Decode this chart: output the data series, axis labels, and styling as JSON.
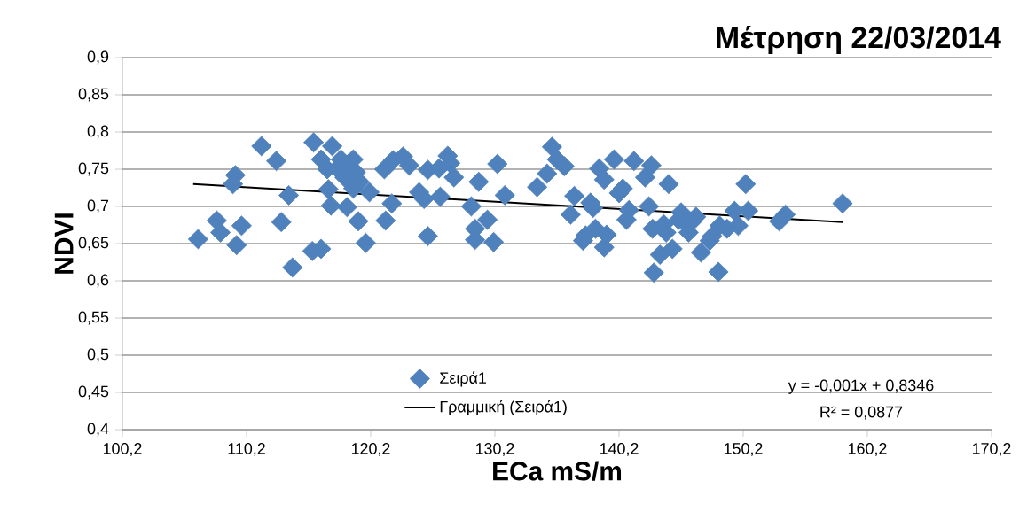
{
  "chart_data": {
    "type": "scatter",
    "title": "Μέτρηση 22/03/2014",
    "xlabel": "ECa mS/m",
    "ylabel": "NDVI",
    "xlim": [
      100.2,
      170.2
    ],
    "xticks": [
      {
        "value": 100.2,
        "label": "100,2"
      },
      {
        "value": 110.2,
        "label": "110,2"
      },
      {
        "value": 120.2,
        "label": "120,2"
      },
      {
        "value": 130.2,
        "label": "130,2"
      },
      {
        "value": 140.2,
        "label": "140,2"
      },
      {
        "value": 150.2,
        "label": "150,2"
      },
      {
        "value": 160.2,
        "label": "160,2"
      },
      {
        "value": 170.2,
        "label": "170,2"
      }
    ],
    "ylim": [
      0.4,
      0.9
    ],
    "yticks": [
      {
        "value": 0.4,
        "label": "0,4"
      },
      {
        "value": 0.45,
        "label": "0,45"
      },
      {
        "value": 0.5,
        "label": "0,5"
      },
      {
        "value": 0.55,
        "label": "0,55"
      },
      {
        "value": 0.6,
        "label": "0,6"
      },
      {
        "value": 0.65,
        "label": "0,65"
      },
      {
        "value": 0.7,
        "label": "0,7"
      },
      {
        "value": 0.75,
        "label": "0,75"
      },
      {
        "value": 0.8,
        "label": "0,8"
      },
      {
        "value": 0.85,
        "label": "0,85"
      },
      {
        "value": 0.9,
        "label": "0,9"
      }
    ],
    "grid": "y",
    "legend": "bottom",
    "annotations": [
      "y = -0,001x + 0,8346",
      "R² = 0,0877"
    ],
    "series": [
      {
        "name": "Σειρά1",
        "marker": "diamond",
        "color": "#4f81bd",
        "x": [
          106.3,
          107.8,
          108.1,
          109.3,
          109.1,
          109.4,
          109.8,
          111.4,
          112.6,
          113.0,
          113.6,
          113.9,
          115.5,
          115.6,
          116.2,
          116.2,
          116.7,
          116.8,
          117.0,
          117.1,
          117.5,
          117.8,
          118.1,
          118.3,
          118.4,
          118.8,
          118.8,
          119.0,
          119.2,
          119.3,
          119.8,
          120.1,
          121.3,
          121.4,
          121.9,
          122.0,
          122.8,
          123.3,
          124.1,
          124.5,
          124.8,
          124.8,
          125.7,
          125.8,
          126.4,
          126.6,
          126.9,
          128.3,
          128.6,
          128.6,
          128.9,
          129.6,
          130.1,
          130.4,
          131.0,
          133.6,
          134.4,
          134.8,
          135.2,
          135.8,
          136.3,
          136.6,
          137.3,
          137.5,
          137.9,
          138.1,
          138.3,
          138.6,
          139.0,
          139.0,
          139.2,
          139.8,
          140.2,
          140.5,
          140.8,
          141.0,
          141.4,
          142.3,
          142.6,
          142.8,
          142.9,
          143.0,
          143.5,
          143.8,
          144.0,
          144.2,
          144.5,
          145.0,
          145.2,
          145.6,
          145.8,
          146.1,
          146.4,
          146.8,
          147.5,
          147.7,
          148.2,
          148.3,
          148.9,
          149.5,
          149.8,
          150.4,
          150.6,
          153.1,
          153.6,
          158.2
        ],
        "values": [
          0.656,
          0.681,
          0.665,
          0.742,
          0.73,
          0.648,
          0.674,
          0.781,
          0.761,
          0.679,
          0.715,
          0.618,
          0.64,
          0.786,
          0.763,
          0.643,
          0.75,
          0.723,
          0.701,
          0.781,
          0.751,
          0.763,
          0.739,
          0.699,
          0.757,
          0.763,
          0.724,
          0.746,
          0.68,
          0.733,
          0.651,
          0.719,
          0.75,
          0.681,
          0.704,
          0.762,
          0.767,
          0.755,
          0.719,
          0.71,
          0.66,
          0.749,
          0.751,
          0.713,
          0.768,
          0.758,
          0.739,
          0.7,
          0.655,
          0.67,
          0.733,
          0.682,
          0.652,
          0.757,
          0.715,
          0.726,
          0.744,
          0.78,
          0.763,
          0.754,
          0.689,
          0.714,
          0.654,
          0.661,
          0.705,
          0.698,
          0.67,
          0.751,
          0.736,
          0.645,
          0.662,
          0.763,
          0.718,
          0.724,
          0.682,
          0.695,
          0.761,
          0.739,
          0.7,
          0.755,
          0.67,
          0.611,
          0.635,
          0.676,
          0.665,
          0.73,
          0.643,
          0.682,
          0.692,
          0.677,
          0.665,
          0.68,
          0.686,
          0.638,
          0.654,
          0.66,
          0.612,
          0.674,
          0.67,
          0.694,
          0.674,
          0.73,
          0.694,
          0.68,
          0.689,
          0.704
        ]
      },
      {
        "name": "Γραμμική (Σειρά1)",
        "type": "line",
        "marker": "none",
        "color": "#000000",
        "x": [
          105.9,
          158.2
        ],
        "values": [
          0.73,
          0.679
        ]
      }
    ]
  }
}
